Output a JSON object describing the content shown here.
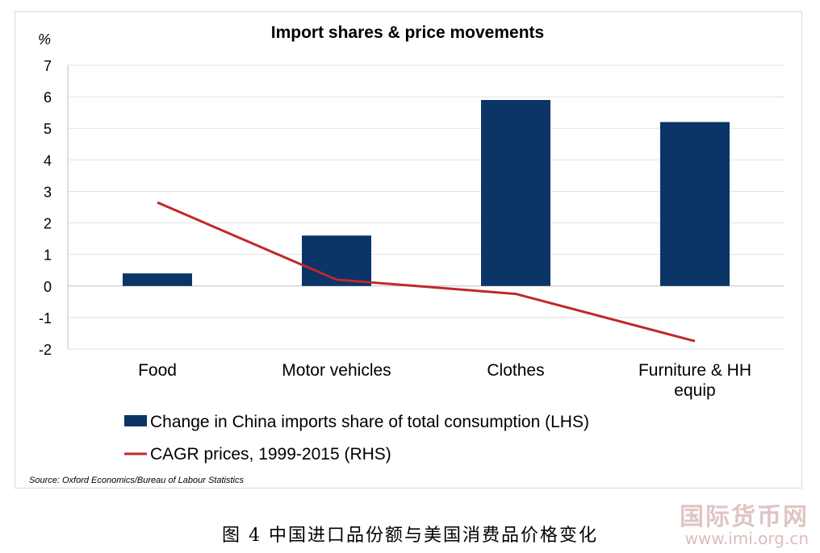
{
  "chart_data": {
    "type": "bar",
    "title": "Import shares & price movements",
    "ylabel": "%",
    "ylim": [
      -2,
      7
    ],
    "yticks": [
      "7",
      "6",
      "5",
      "4",
      "3",
      "2",
      "1",
      "0",
      "-1",
      "-2"
    ],
    "categories": [
      "Food",
      "Motor vehicles",
      "Clothes",
      "Furniture & HH equip"
    ],
    "category_lines": [
      [
        "Food"
      ],
      [
        "Motor vehicles"
      ],
      [
        "Clothes"
      ],
      [
        "Furniture & HH",
        "equip"
      ]
    ],
    "series": [
      {
        "name": "Change in China imports share of total consumption (LHS)",
        "type": "bar",
        "color": "#0b3566",
        "values": [
          0.4,
          1.6,
          5.9,
          5.2
        ]
      },
      {
        "name": "CAGR prices, 1999-2015 (RHS)",
        "type": "line",
        "color": "#c0272d",
        "values": [
          2.65,
          0.2,
          -0.25,
          -1.75
        ]
      }
    ],
    "legend_position": "bottom",
    "grid": true
  },
  "source": "Source: Oxford Economics/Bureau of Labour Statistics",
  "caption": "图 4 中国进口品份额与美国消费品价格变化",
  "watermark": {
    "cn": "国际货币网",
    "url": "www.imi.org.cn"
  }
}
